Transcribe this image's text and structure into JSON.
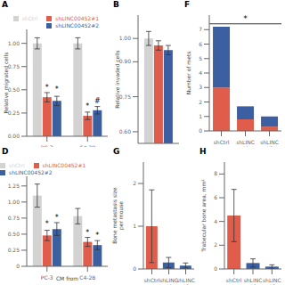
{
  "chart_data": [
    {
      "type": "bar",
      "title": "A",
      "categories": [
        "PC-3",
        "C4-2B"
      ],
      "series": [
        {
          "name": "shCtrl",
          "color": "#d3d3d3",
          "values": [
            1.0,
            1.0
          ],
          "errors": [
            0.06,
            0.06
          ]
        },
        {
          "name": "shLINC00452#1",
          "color": "#e05c4b",
          "values": [
            0.42,
            0.22
          ],
          "errors": [
            0.05,
            0.04
          ]
        },
        {
          "name": "shLINC00452#2",
          "color": "#3b5fa0",
          "values": [
            0.38,
            0.28
          ],
          "errors": [
            0.05,
            0.04
          ]
        }
      ],
      "ylabel": "Relative migrated cells",
      "ylim": [
        0,
        1.15
      ],
      "yticks": [
        {
          "value": 0.0,
          "label": "0.00"
        },
        0.25,
        {
          "value": 0.5,
          "label": "0.50"
        },
        0.75,
        {
          "value": 1.0,
          "label": "1.00"
        }
      ],
      "legend": "upper right",
      "annotations": [
        {
          "text": "*",
          "category": "PC-3",
          "series": "shLINC00452#1",
          "y": 0.5
        },
        {
          "text": "*",
          "category": "PC-3",
          "series": "shLINC00452#2",
          "y": 0.48
        },
        {
          "text": "*",
          "category": "C4-2B",
          "series": "shLINC00452#1",
          "y": 0.3
        },
        {
          "text": "#",
          "category": "C4-2B",
          "series": "shLINC00452#2",
          "y": 0.35
        }
      ]
    },
    {
      "type": "bar",
      "title": "B",
      "categories": [
        null
      ],
      "tick_labels": "y",
      "series": [
        {
          "name": "shCtrl",
          "color": "#d3d3d3",
          "values": [
            1.0
          ],
          "errors": [
            0.03
          ]
        },
        {
          "name": "shLINC00452#1",
          "color": "#e05c4b",
          "values": [
            0.97
          ],
          "errors": [
            0.02
          ]
        },
        {
          "name": "shLINC00452#2",
          "color": "#3b5fa0",
          "values": [
            0.95
          ],
          "errors": [
            0.02
          ]
        }
      ],
      "ylabel": "Relative invaded cells",
      "ylim": [
        0.55,
        1.1
      ],
      "yticks": [
        {
          "value": 0.6,
          "label": "0.60"
        },
        0.75,
        {
          "value": 0.9,
          "label": "0.90"
        },
        {
          "value": 1.0,
          "label": "1.00"
        }
      ]
    },
    {
      "type": "bar",
      "title": "F",
      "stacked": true,
      "categories": [
        "shCtrl",
        "shLINC\n#1",
        "shLINC\n#2"
      ],
      "series": [
        {
          "color": "#e05c4b",
          "values": [
            3.0,
            0.8,
            0.3
          ]
        },
        {
          "color": "#3b5fa0",
          "values": [
            4.2,
            0.9,
            0.7
          ]
        }
      ],
      "ylabel": "Number of mets",
      "ylim": [
        0,
        8
      ],
      "yticks": [
        0,
        1,
        2,
        3,
        4,
        5,
        6,
        7
      ],
      "annotations": [
        {
          "text": "*",
          "category": "shLINC\n#1",
          "y": 7.5,
          "bracket_y": 7.4
        }
      ]
    },
    {
      "type": "bar",
      "title": "D",
      "categories": [
        "PC-3",
        "C4-2B"
      ],
      "series": [
        {
          "name": "shCtrl",
          "color": "#d3d3d3",
          "values": [
            1.1,
            0.78
          ],
          "errors": [
            0.18,
            0.12
          ]
        },
        {
          "name": "shLINC00452#1",
          "color": "#e05c4b",
          "values": [
            0.48,
            0.38
          ],
          "errors": [
            0.08,
            0.07
          ]
        },
        {
          "name": "shLINC00452#2",
          "color": "#3b5fa0",
          "values": [
            0.58,
            0.33
          ],
          "errors": [
            0.1,
            0.07
          ]
        }
      ],
      "xlabel": "CM from",
      "ylim": [
        0,
        1.4
      ],
      "yticks": [
        0,
        0.25,
        {
          "value": 0.5,
          "label": "0.50"
        },
        0.75,
        {
          "value": 1.0,
          "label": "1.00"
        },
        1.25
      ],
      "legend": "upper left",
      "annotations": [
        {
          "text": "*",
          "category": "PC-3",
          "series": "shLINC00452#1",
          "y": 0.62
        },
        {
          "text": "*",
          "category": "PC-3",
          "series": "shLINC00452#2",
          "y": 0.72
        },
        {
          "text": "*",
          "category": "C4-2B",
          "series": "shLINC00452#1",
          "y": 0.48
        },
        {
          "text": "*",
          "category": "C4-2B",
          "series": "shLINC00452#2",
          "y": 0.45
        }
      ]
    },
    {
      "type": "bar",
      "title": "G",
      "categories": [
        "shCtrl",
        "shLINC\n#1",
        "shLINC\n#2"
      ],
      "values": [
        1.0,
        0.15,
        0.08
      ],
      "errors": [
        0.85,
        0.12,
        0.06
      ],
      "colors": [
        "#e05c4b",
        "#3b5fa0",
        "#3b5fa0"
      ],
      "ylabel": "Bone metastasis size\nper mouse",
      "ylim": [
        0,
        2.5
      ],
      "yticks": [
        0,
        1,
        2
      ]
    },
    {
      "type": "bar",
      "title": "H",
      "categories": [
        "shCtrl",
        "shLINC\n#1",
        "shLINC\n#2"
      ],
      "values": [
        4.5,
        0.5,
        0.2
      ],
      "errors": [
        2.2,
        0.35,
        0.15
      ],
      "colors": [
        "#e05c4b",
        "#3b5fa0",
        "#3b5fa0"
      ],
      "ylabel": "Trabecular bone area, mm²",
      "ylim": [
        0,
        9
      ],
      "yticks": [
        0,
        2,
        4,
        6,
        8
      ]
    }
  ]
}
